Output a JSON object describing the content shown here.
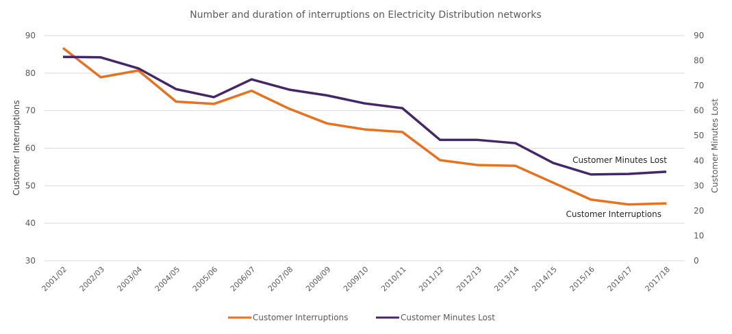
{
  "chart_data": {
    "type": "line",
    "title": "Number and duration of interruptions on Electricity Distribution networks",
    "categories": [
      "2001/02",
      "2002/03",
      "2003/04",
      "2004/05",
      "2005/06",
      "2006/07",
      "2007/08",
      "2008/09",
      "2009/10",
      "2010/11",
      "2011/12",
      "2012/13",
      "2013/14",
      "2014/15",
      "2015/16",
      "2016/17",
      "2017/18"
    ],
    "ylabel": "Customer Interruptions",
    "y2label": "Customer Minutes Lost",
    "ylim": [
      30,
      90
    ],
    "y2lim": [
      0,
      90
    ],
    "yticks": [
      30,
      40,
      50,
      60,
      70,
      80,
      90
    ],
    "y2ticks": [
      0,
      10,
      20,
      30,
      40,
      50,
      60,
      70,
      80,
      90
    ],
    "grid": true,
    "legend": "bottom",
    "series": [
      {
        "name": "Customer Interruptions",
        "axis": "left",
        "color": "#E8711E",
        "values": [
          86.7,
          78.9,
          80.7,
          72.4,
          71.8,
          75.3,
          70.5,
          66.6,
          65.0,
          64.3,
          56.8,
          55.5,
          55.3,
          50.8,
          46.3,
          45.0,
          45.3
        ]
      },
      {
        "name": "Customer Minutes Lost",
        "axis": "right",
        "color": "#432767",
        "values": [
          81.5,
          81.3,
          76.9,
          68.6,
          65.4,
          72.5,
          68.4,
          66.1,
          62.9,
          61.0,
          48.3,
          48.3,
          47.0,
          39.1,
          34.5,
          34.7,
          35.6
        ]
      }
    ],
    "annotations": [
      "Customer Minutes Lost",
      "Customer Interruptions"
    ]
  }
}
